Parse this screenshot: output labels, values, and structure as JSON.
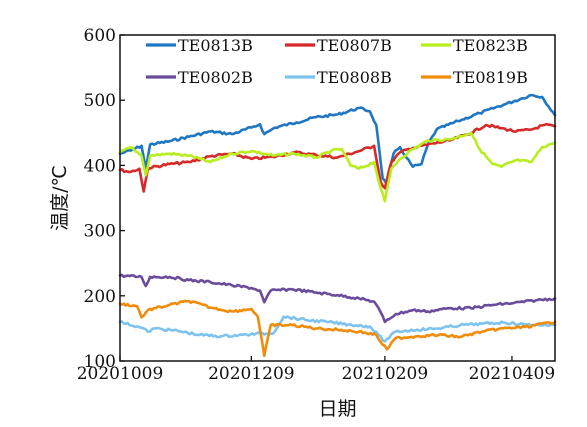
{
  "chart_data": {
    "type": "line",
    "xlabel": "日期",
    "ylabel": "温度/℃",
    "x_tick_labels": [
      "20201009",
      "20201209",
      "20210209",
      "20210409"
    ],
    "x_tick_dates": [
      "2020-10-09",
      "2020-12-09",
      "2021-02-09",
      "2021-04-09"
    ],
    "xlim": [
      "2020-10-09",
      "2021-04-29"
    ],
    "y_ticks": [
      100,
      200,
      300,
      400,
      500,
      600
    ],
    "ylim": [
      100,
      600
    ],
    "grid": false,
    "legend_position": "top",
    "series": [
      {
        "name": "TE0813B",
        "color": "#1f77c4",
        "points": [
          [
            "2020-10-09",
            418
          ],
          [
            "2020-10-14",
            423
          ],
          [
            "2020-10-19",
            430
          ],
          [
            "2020-10-21",
            395
          ],
          [
            "2020-10-23",
            432
          ],
          [
            "2020-11-01",
            437
          ],
          [
            "2020-11-10",
            444
          ],
          [
            "2020-11-20",
            452
          ],
          [
            "2020-11-30",
            448
          ],
          [
            "2020-12-09",
            458
          ],
          [
            "2020-12-13",
            463
          ],
          [
            "2020-12-15",
            448
          ],
          [
            "2020-12-20",
            458
          ],
          [
            "2020-12-30",
            466
          ],
          [
            "2021-01-08",
            474
          ],
          [
            "2021-01-18",
            478
          ],
          [
            "2021-01-28",
            488
          ],
          [
            "2021-02-02",
            483
          ],
          [
            "2021-02-05",
            462
          ],
          [
            "2021-02-08",
            380
          ],
          [
            "2021-02-10",
            370
          ],
          [
            "2021-02-13",
            418
          ],
          [
            "2021-02-16",
            428
          ],
          [
            "2021-02-19",
            412
          ],
          [
            "2021-02-22",
            398
          ],
          [
            "2021-02-26",
            402
          ],
          [
            "2021-03-01",
            432
          ],
          [
            "2021-03-05",
            455
          ],
          [
            "2021-03-15",
            468
          ],
          [
            "2021-03-25",
            480
          ],
          [
            "2021-04-05",
            493
          ],
          [
            "2021-04-14",
            503
          ],
          [
            "2021-04-18",
            508
          ],
          [
            "2021-04-23",
            505
          ],
          [
            "2021-04-29",
            477
          ]
        ]
      },
      {
        "name": "TE0807B",
        "color": "#d62a2a",
        "points": [
          [
            "2020-10-09",
            393
          ],
          [
            "2020-10-14",
            390
          ],
          [
            "2020-10-18",
            395
          ],
          [
            "2020-10-20",
            360
          ],
          [
            "2020-10-22",
            396
          ],
          [
            "2020-11-01",
            402
          ],
          [
            "2020-11-10",
            405
          ],
          [
            "2020-11-20",
            414
          ],
          [
            "2020-11-30",
            418
          ],
          [
            "2020-12-09",
            410
          ],
          [
            "2020-12-19",
            413
          ],
          [
            "2020-12-29",
            420
          ],
          [
            "2021-01-08",
            416
          ],
          [
            "2021-01-18",
            412
          ],
          [
            "2021-01-28",
            422
          ],
          [
            "2021-02-04",
            430
          ],
          [
            "2021-02-07",
            375
          ],
          [
            "2021-02-09",
            365
          ],
          [
            "2021-02-12",
            405
          ],
          [
            "2021-02-16",
            420
          ],
          [
            "2021-02-22",
            427
          ],
          [
            "2021-03-01",
            432
          ],
          [
            "2021-03-11",
            438
          ],
          [
            "2021-03-21",
            450
          ],
          [
            "2021-03-28",
            462
          ],
          [
            "2021-04-04",
            457
          ],
          [
            "2021-04-11",
            452
          ],
          [
            "2021-04-18",
            455
          ],
          [
            "2021-04-24",
            462
          ],
          [
            "2021-04-29",
            460
          ]
        ]
      },
      {
        "name": "TE0823B",
        "color": "#b8ee1e",
        "points": [
          [
            "2020-10-09",
            420
          ],
          [
            "2020-10-14",
            428
          ],
          [
            "2020-10-19",
            415
          ],
          [
            "2020-10-21",
            385
          ],
          [
            "2020-10-23",
            415
          ],
          [
            "2020-11-01",
            418
          ],
          [
            "2020-11-10",
            415
          ],
          [
            "2020-11-20",
            405
          ],
          [
            "2020-11-30",
            418
          ],
          [
            "2020-12-09",
            422
          ],
          [
            "2020-12-19",
            415
          ],
          [
            "2020-12-29",
            418
          ],
          [
            "2021-01-08",
            412
          ],
          [
            "2021-01-15",
            422
          ],
          [
            "2021-01-20",
            425
          ],
          [
            "2021-01-24",
            400
          ],
          [
            "2021-01-28",
            395
          ],
          [
            "2021-02-04",
            405
          ],
          [
            "2021-02-07",
            365
          ],
          [
            "2021-02-09",
            345
          ],
          [
            "2021-02-12",
            395
          ],
          [
            "2021-02-16",
            410
          ],
          [
            "2021-02-22",
            425
          ],
          [
            "2021-03-01",
            438
          ],
          [
            "2021-03-11",
            440
          ],
          [
            "2021-03-21",
            450
          ],
          [
            "2021-03-25",
            425
          ],
          [
            "2021-03-31",
            402
          ],
          [
            "2021-04-04",
            398
          ],
          [
            "2021-04-11",
            408
          ],
          [
            "2021-04-18",
            405
          ],
          [
            "2021-04-23",
            428
          ],
          [
            "2021-04-29",
            435
          ]
        ]
      },
      {
        "name": "TE0802B",
        "color": "#6a4c9c",
        "points": [
          [
            "2020-10-09",
            231
          ],
          [
            "2020-10-19",
            229
          ],
          [
            "2020-10-21",
            215
          ],
          [
            "2020-10-23",
            229
          ],
          [
            "2020-11-01",
            229
          ],
          [
            "2020-11-10",
            224
          ],
          [
            "2020-11-20",
            221
          ],
          [
            "2020-11-30",
            216
          ],
          [
            "2020-12-09",
            212
          ],
          [
            "2020-12-13",
            208
          ],
          [
            "2020-12-15",
            190
          ],
          [
            "2020-12-18",
            208
          ],
          [
            "2020-12-28",
            210
          ],
          [
            "2021-01-08",
            205
          ],
          [
            "2021-01-18",
            201
          ],
          [
            "2021-01-28",
            196
          ],
          [
            "2021-02-04",
            191
          ],
          [
            "2021-02-07",
            175
          ],
          [
            "2021-02-09",
            160
          ],
          [
            "2021-02-14",
            172
          ],
          [
            "2021-02-22",
            178
          ],
          [
            "2021-03-01",
            176
          ],
          [
            "2021-03-11",
            181
          ],
          [
            "2021-03-21",
            181
          ],
          [
            "2021-03-31",
            186
          ],
          [
            "2021-04-10",
            189
          ],
          [
            "2021-04-20",
            193
          ],
          [
            "2021-04-29",
            196
          ]
        ]
      },
      {
        "name": "TE0808B",
        "color": "#7ec3ee",
        "points": [
          [
            "2020-10-09",
            160
          ],
          [
            "2020-10-19",
            151
          ],
          [
            "2020-10-22",
            145
          ],
          [
            "2020-10-25",
            150
          ],
          [
            "2020-11-05",
            146
          ],
          [
            "2020-11-15",
            140
          ],
          [
            "2020-11-25",
            138
          ],
          [
            "2020-12-05",
            140
          ],
          [
            "2020-12-13",
            142
          ],
          [
            "2020-12-19",
            142
          ],
          [
            "2020-12-24",
            168
          ],
          [
            "2021-01-03",
            163
          ],
          [
            "2021-01-13",
            160
          ],
          [
            "2021-01-23",
            156
          ],
          [
            "2021-02-02",
            153
          ],
          [
            "2021-02-06",
            140
          ],
          [
            "2021-02-09",
            130
          ],
          [
            "2021-02-14",
            145
          ],
          [
            "2021-02-24",
            148
          ],
          [
            "2021-03-06",
            150
          ],
          [
            "2021-03-16",
            155
          ],
          [
            "2021-03-26",
            157
          ],
          [
            "2021-04-05",
            159
          ],
          [
            "2021-04-15",
            156
          ],
          [
            "2021-04-29",
            155
          ]
        ]
      },
      {
        "name": "TE0819B",
        "color": "#f08c0a",
        "points": [
          [
            "2020-10-09",
            188
          ],
          [
            "2020-10-17",
            184
          ],
          [
            "2020-10-19",
            167
          ],
          [
            "2020-10-22",
            178
          ],
          [
            "2020-11-01",
            186
          ],
          [
            "2020-11-10",
            192
          ],
          [
            "2020-11-20",
            182
          ],
          [
            "2020-11-30",
            176
          ],
          [
            "2020-12-09",
            180
          ],
          [
            "2020-12-12",
            168
          ],
          [
            "2020-12-15",
            108
          ],
          [
            "2020-12-18",
            155
          ],
          [
            "2020-12-28",
            155
          ],
          [
            "2021-01-08",
            150
          ],
          [
            "2021-01-18",
            148
          ],
          [
            "2021-01-28",
            145
          ],
          [
            "2021-02-05",
            140
          ],
          [
            "2021-02-08",
            125
          ],
          [
            "2021-02-10",
            118
          ],
          [
            "2021-02-14",
            135
          ],
          [
            "2021-02-24",
            138
          ],
          [
            "2021-03-06",
            140
          ],
          [
            "2021-03-16",
            137
          ],
          [
            "2021-03-26",
            145
          ],
          [
            "2021-04-05",
            150
          ],
          [
            "2021-04-15",
            152
          ],
          [
            "2021-04-29",
            160
          ]
        ]
      }
    ]
  }
}
